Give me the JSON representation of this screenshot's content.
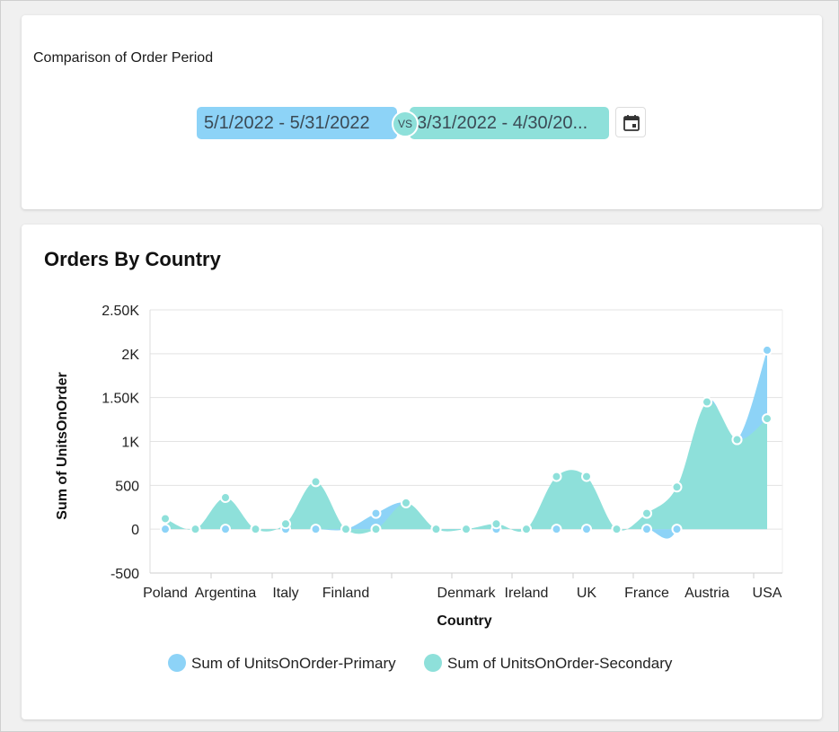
{
  "period_card": {
    "title": "Comparison of Order Period",
    "primary_range": "5/1/2022 - 5/31/2022",
    "vs_label": "VS",
    "secondary_range": "3/31/2022 - 4/30/20...",
    "calendar_icon": "calendar-icon"
  },
  "orders_card": {
    "title": "Orders By Country"
  },
  "colors": {
    "primary": "#8dd3f7",
    "secondary": "#8ee0da",
    "grid": "#e3e3e3"
  },
  "chart_data": {
    "type": "area",
    "title": "",
    "xlabel": "Country",
    "ylabel": "Sum of UnitsOnOrder",
    "ylim": [
      -500,
      2500
    ],
    "y_ticks": [
      "-500",
      "0",
      "500",
      "1K",
      "1.50K",
      "2K",
      "2.50K"
    ],
    "y_tick_values": [
      -500,
      0,
      500,
      1000,
      1500,
      2000,
      2500
    ],
    "categories": [
      "Poland",
      "Argentina",
      "Italy",
      "Finland",
      "Denmark",
      "Ireland",
      "UK",
      "France",
      "Austria",
      "USA"
    ],
    "x_positions": [
      0,
      2,
      4,
      6,
      10,
      12,
      14,
      16,
      18,
      20
    ],
    "grid": true,
    "legend_position": "bottom",
    "series": [
      {
        "name": "Sum of UnitsOnOrder-Primary",
        "x": [
          0,
          1,
          2,
          3,
          4,
          5,
          6,
          7,
          8,
          9,
          10,
          11,
          12,
          13,
          14,
          15,
          16,
          17,
          18,
          19,
          20
        ],
        "values": [
          0,
          0,
          0,
          0,
          0,
          0,
          0,
          180,
          300,
          0,
          0,
          0,
          0,
          0,
          0,
          0,
          0,
          0,
          1450,
          1020,
          2040
        ]
      },
      {
        "name": "Sum of UnitsOnOrder-Secondary",
        "x": [
          0,
          1,
          2,
          3,
          4,
          5,
          6,
          7,
          8,
          9,
          10,
          11,
          12,
          13,
          14,
          15,
          16,
          17,
          18,
          19,
          20
        ],
        "values": [
          120,
          0,
          360,
          0,
          60,
          540,
          0,
          0,
          300,
          0,
          0,
          60,
          0,
          600,
          600,
          0,
          180,
          480,
          1450,
          1020,
          1260
        ]
      }
    ]
  }
}
